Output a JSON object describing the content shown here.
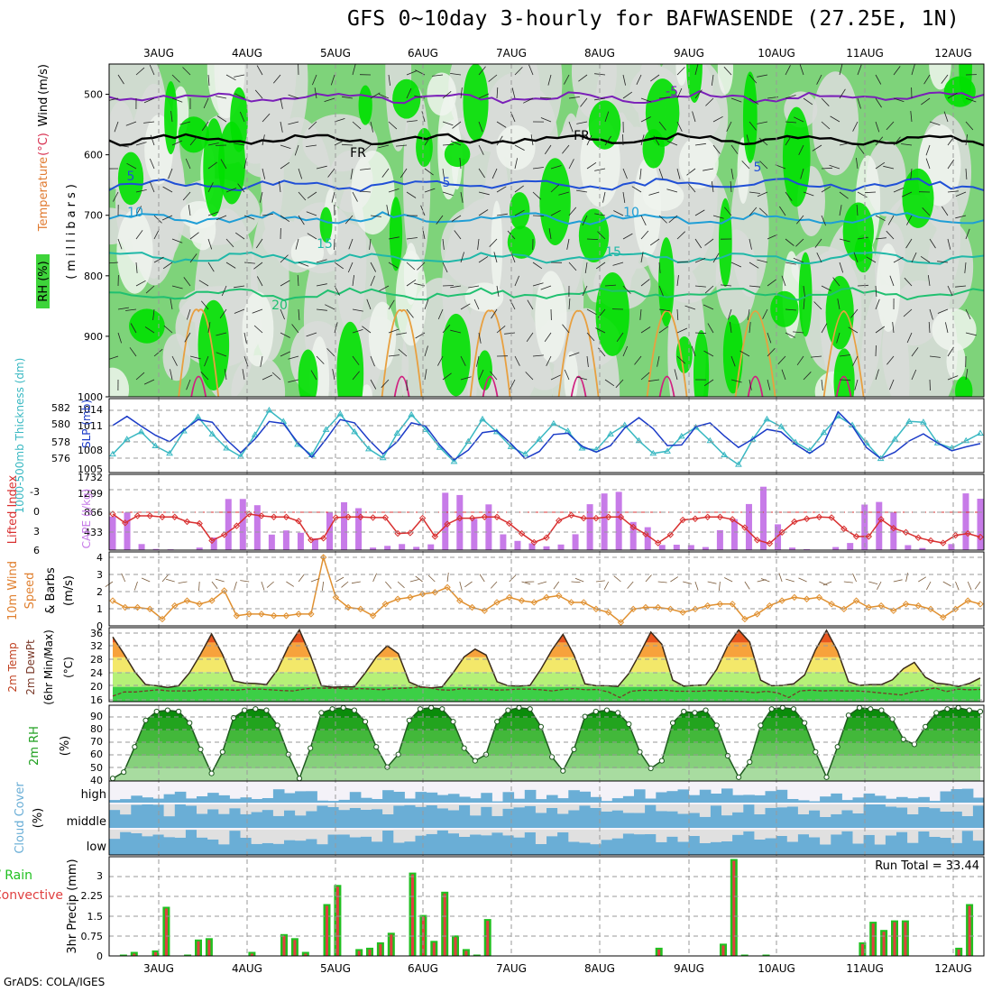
{
  "title": "GFS 0~10day 3-hourly for BAFWASENDE (27.25E, 1N)",
  "footer": "GrADS: COLA/IGES",
  "dates": [
    "3AUG",
    "4AUG",
    "5AUG",
    "6AUG",
    "7AUG",
    "8AUG",
    "9AUG",
    "10AUG",
    "11AUG",
    "12AUG"
  ],
  "colors": {
    "rh_light": "#d8dcd8",
    "rh_mid": "#7ed37a",
    "rh_green": "#3ed43a",
    "rh_bright": "#00e000",
    "temp_line": "#7a1fb8",
    "temp_blue": "#1f4fd6",
    "temp_cyan": "#1f9ed6",
    "temp_teal": "#20b8a8",
    "temp_green": "#20c070",
    "slp": "#39b8c2",
    "thick": "#1c3cc8",
    "lifted": "#d83030",
    "cape": "#c77be8",
    "wind": "#e09030",
    "cloud": "#6aaed6",
    "precip_total": "#20c020",
    "precip_conv": "#e04040"
  },
  "chart_data": [
    {
      "type": "heatmap",
      "ylabel": "(millibars)",
      "side_labels": {
        "rh": "RH (%)",
        "temperature": "Temperature",
        "temp_unit": "(°C)",
        "wind": "Wind",
        "wind_unit": "(m/s)"
      },
      "yticks": [
        "500",
        "600",
        "700",
        "800",
        "900",
        "1000"
      ],
      "ylim": [
        1000,
        450
      ],
      "contour_labels": [
        "-5",
        "FR",
        "5",
        "10",
        "15",
        "20"
      ],
      "isotherms_mb": [
        {
          "label": "-5",
          "level": 505
        },
        {
          "label": "FR",
          "level": 575
        },
        {
          "label": "5",
          "level": 650
        },
        {
          "label": "10",
          "level": 705
        },
        {
          "label": "15",
          "level": 770
        },
        {
          "label": "20",
          "level": 830
        }
      ]
    },
    {
      "type": "line",
      "left_label": "1000-500mb Thickness (dm)",
      "right_label": "SLP (mb)",
      "left_ticks": [
        "582",
        "580",
        "578",
        "576"
      ],
      "right_ticks": [
        "1014",
        "1011",
        "1008",
        "1005"
      ],
      "series": [
        {
          "name": "Thickness",
          "values": [
            576.5,
            578.5,
            579.5,
            577.6,
            576.6,
            579.6,
            581.5,
            579.2,
            577.3,
            576.2,
            579.1,
            582.4,
            580.9,
            577.8,
            576.4,
            579.8,
            581.9,
            579.5,
            577.2,
            576.0,
            579.3,
            581.8,
            579.8,
            577.4,
            575.5,
            578.2,
            581.2,
            579.5,
            577.5,
            576.5,
            578.5,
            580.6,
            579.6,
            577.3,
            577.1,
            579.2,
            580.4,
            578.3,
            576.6,
            576.9,
            578.9,
            580.1,
            578.3,
            576.4,
            575.1,
            578.5,
            581.2,
            580.2,
            578.1,
            577.0,
            579.4,
            581.6,
            580.4,
            578.0,
            575.9,
            578.5,
            580.9,
            580.8,
            578.0,
            577.3,
            578.3,
            579.3
          ]
        },
        {
          "name": "SLP",
          "values": [
            1011.7,
            1013.1,
            1011.6,
            1010.2,
            1009.2,
            1011.0,
            1012.6,
            1012.2,
            1009.5,
            1007.5,
            1009.6,
            1012.3,
            1012.0,
            1009.1,
            1006.8,
            1009.6,
            1012.6,
            1012.1,
            1009.5,
            1007.3,
            1009.2,
            1012.1,
            1011.6,
            1008.7,
            1006.4,
            1007.9,
            1010.6,
            1010.9,
            1008.9,
            1006.6,
            1007.7,
            1010.3,
            1010.5,
            1008.5,
            1007.6,
            1008.6,
            1011.3,
            1012.9,
            1011.2,
            1008.6,
            1008.7,
            1011.5,
            1012.1,
            1010.1,
            1008.3,
            1009.6,
            1011.1,
            1010.7,
            1008.8,
            1007.4,
            1008.9,
            1013.8,
            1011.6,
            1008.3,
            1006.6,
            1007.6,
            1009.3,
            1010.4,
            1009.0,
            1007.8,
            1008.4,
            1008.9
          ]
        }
      ]
    },
    {
      "type": "bar",
      "left_label": "Lifted Index",
      "right_label": "CAPE (J/kg)",
      "left_ticks": [
        "-3",
        "0",
        "3",
        "6"
      ],
      "right_ticks": [
        "1732",
        "1299",
        "866",
        "433"
      ],
      "series": [
        {
          "name": "CAPE",
          "values": [
            805,
            903,
            145,
            29,
            19,
            0,
            60,
            304,
            1228,
            1228,
            1079,
            372,
            473,
            416,
            284,
            901,
            1149,
            1007,
            60,
            101,
            144,
            77,
            139,
            1378,
            1323,
            751,
            1097,
            378,
            221,
            162,
            90,
            134,
            380,
            1103,
            1360,
            1399,
            676,
            550,
            124,
            130,
            121,
            73,
            478,
            742,
            1106,
            1522,
            620,
            61,
            23,
            7,
            74,
            170,
            1093,
            1156,
            905,
            120,
            49,
            0,
            145,
            1362,
            1233
          ]
        },
        {
          "name": "Lifted Index",
          "values": [
            0.5,
            -1.0,
            0.2,
            0.2,
            0.0,
            0.0,
            -0.8,
            -1.1,
            -4.0,
            -3.0,
            -1.5,
            0.5,
            0.2,
            0.0,
            0.0,
            -0.7,
            -3.9,
            -3.6,
            -0.1,
            0.0,
            0.0,
            -0.1,
            -0.1,
            -2.8,
            -2.7,
            -0.2,
            -3.3,
            -1.2,
            -0.2,
            -0.2,
            0.0,
            0.0,
            -1.1,
            -2.8,
            -4.3,
            -3.5,
            -0.6,
            0.3,
            -0.2,
            -0.2,
            0.0,
            0.0,
            -1.7,
            -2.9,
            -4.4,
            -3.0,
            -0.5,
            -0.3,
            0.0,
            0.0,
            -0.4,
            -1.8,
            -3.9,
            -4.5,
            -2.6,
            -0.8,
            -0.3,
            0.0,
            -0.1,
            -2.0,
            -3.3,
            -3.3,
            -0.4,
            -1.9,
            -2.6,
            -3.5,
            -4.0,
            -4.4,
            -3.1,
            -2.8,
            -3.4
          ]
        }
      ]
    },
    {
      "type": "line",
      "ylabel": "10m Wind Speed & Barbs (m/s)",
      "ylabel_parts": {
        "a": "10m Wind",
        "b": "Speed",
        "c": "& Barbs",
        "d": "(m/s)"
      },
      "yticks": [
        "4",
        "3",
        "2",
        "1",
        "0"
      ],
      "ylim": [
        0,
        4
      ],
      "series": [
        {
          "name": "Speed",
          "values": [
            1.4,
            1.0,
            1.0,
            0.9,
            0.3,
            1.1,
            1.4,
            1.2,
            1.4,
            2.0,
            0.5,
            0.6,
            0.6,
            0.5,
            0.5,
            0.6,
            0.6,
            4.0,
            1.6,
            1.0,
            0.9,
            0.5,
            1.2,
            1.5,
            1.6,
            1.8,
            1.9,
            2.2,
            1.4,
            1.0,
            0.8,
            1.3,
            1.6,
            1.4,
            1.3,
            1.6,
            1.7,
            1.3,
            1.3,
            0.9,
            0.7,
            0.1,
            0.9,
            1.0,
            1.0,
            0.9,
            0.7,
            0.9,
            1.1,
            1.2,
            1.2,
            0.3,
            0.6,
            1.1,
            1.4,
            1.6,
            1.5,
            1.6,
            1.2,
            0.9,
            1.4,
            1.0,
            1.1,
            0.8,
            1.2,
            1.1,
            0.9,
            0.4,
            0.9,
            1.4,
            1.2
          ]
        }
      ]
    },
    {
      "type": "area",
      "ylabel": "2m Temp 2m DewPt (6hr Min/Max) (°C)",
      "ylabel_parts": {
        "a": "2m Temp",
        "b": "2m DewPt",
        "c": "(6hr Min/Max)",
        "d": "(°C)"
      },
      "yticks": [
        "36",
        "32",
        "28",
        "24",
        "20",
        "16"
      ],
      "ylim": [
        16,
        36
      ],
      "series": [
        {
          "name": "2m Temp",
          "values": [
            33.5,
            29.0,
            24.1,
            20.6,
            20.3,
            19.8,
            20.3,
            23.8,
            28.8,
            34.3,
            28.7,
            21.6,
            21.0,
            20.9,
            20.6,
            24.6,
            30.9,
            35.4,
            28.5,
            20.3,
            19.9,
            20.0,
            20.0,
            23.8,
            28.1,
            31.1,
            29.0,
            21.3,
            20.0,
            19.7,
            20.0,
            23.8,
            28.1,
            30.2,
            28.6,
            21.4,
            20.3,
            20.2,
            20.4,
            24.8,
            30.0,
            34.2,
            28.6,
            20.8,
            20.3,
            20.3,
            20.1,
            23.6,
            29.0,
            34.8,
            31.5,
            21.8,
            20.2,
            20.4,
            20.5,
            24.7,
            31.1,
            35.4,
            32.1,
            21.8,
            20.3,
            20.4,
            20.8,
            23.2,
            30.0,
            35.3,
            29.7,
            21.4,
            20.4,
            20.6,
            20.6,
            21.9,
            24.9,
            26.6,
            22.6,
            21.0,
            20.7,
            20.1,
            20.9,
            22.4
          ]
        },
        {
          "name": "2m DewPt",
          "values": [
            17.5,
            18.6,
            18.6,
            18.9,
            19.2,
            18.9,
            18.9,
            18.9,
            19.3,
            19.2,
            19.2,
            19.1,
            19.4,
            19.4,
            19.2,
            19.0,
            18.9,
            19.4,
            19.7,
            19.6,
            19.6,
            19.4,
            19.5,
            19.4,
            19.2,
            19.6,
            19.6,
            19.9,
            19.8,
            19.2,
            19.1,
            19.5,
            19.4,
            19.4,
            19.1,
            19.2,
            19.4,
            19.4,
            19.2,
            18.9,
            19.3,
            19.5,
            19.2,
            19.3,
            18.6,
            17.1,
            18.8,
            19.1,
            19.0,
            19.1,
            18.8,
            18.8,
            18.8,
            19.0,
            18.9,
            18.8,
            18.7,
            18.4,
            18.8,
            18.4,
            17.1,
            18.9,
            19.1,
            18.9,
            19.0,
            18.9,
            18.9,
            18.7,
            18.4,
            18.1,
            17.8,
            18.6,
            19.1,
            19.7,
            18.7,
            19.4,
            19.2,
            19.3
          ]
        }
      ]
    },
    {
      "type": "area",
      "ylabel": "2m RH (%)",
      "yticks": [
        "90",
        "80",
        "70",
        "60",
        "50",
        "40"
      ],
      "ylim": [
        35,
        95
      ],
      "series": [
        {
          "name": "2m RH",
          "values": [
            37,
            42,
            62,
            83,
            90,
            91,
            90,
            81,
            60,
            41,
            58,
            85,
            91,
            92,
            91,
            79,
            56,
            37,
            61,
            89,
            92,
            93,
            91,
            82,
            62,
            46,
            56,
            83,
            92,
            93,
            92,
            82,
            61,
            51,
            56,
            82,
            91,
            93,
            92,
            78,
            54,
            43,
            60,
            86,
            90,
            91,
            89,
            80,
            58,
            45,
            51,
            81,
            90,
            89,
            91,
            79,
            55,
            38,
            50,
            79,
            92,
            93,
            92,
            81,
            58,
            38,
            62,
            87,
            93,
            92,
            91,
            84,
            68,
            64,
            78,
            89,
            92,
            93,
            91,
            90
          ]
        }
      ]
    },
    {
      "type": "heatmap",
      "ylabel": "Cloud Cover (%)",
      "yticks": [
        "high",
        "middle",
        "low"
      ],
      "levels": [
        "high",
        "middle",
        "low"
      ]
    },
    {
      "type": "bar",
      "ylabel": "3hr Precip (mm)",
      "side_label": "Total / Rain Convective",
      "side_label_parts": {
        "total": "Total / Rain",
        "conv": "Convective"
      },
      "annotation": "Run Total = 33.44",
      "yticks": [
        "3",
        "2.25",
        "1.5",
        "0.75",
        "0"
      ],
      "ylim": [
        0,
        3.5
      ],
      "series": [
        {
          "name": "Total",
          "values": [
            0,
            0.05,
            0.15,
            0,
            0.2,
            1.8,
            0,
            0.05,
            0.6,
            0.65,
            0,
            0,
            0,
            0.15,
            0,
            0,
            0.8,
            0.65,
            0.15,
            0,
            1.9,
            2.6,
            0,
            0.25,
            0.3,
            0.5,
            0.85,
            0,
            3.05,
            1.5,
            0.55,
            2.35,
            0.75,
            0.25,
            0.05,
            1.35,
            0,
            0,
            0,
            0,
            0,
            0,
            0,
            0,
            0,
            0,
            0,
            0,
            0,
            0,
            0,
            0.3,
            0,
            0,
            0,
            0,
            0,
            0.45,
            3.55,
            0.05,
            0,
            0.05,
            0,
            0,
            0,
            0,
            0,
            0,
            0,
            0,
            0.5,
            1.25,
            0.95,
            1.3,
            1.3,
            0,
            0,
            0,
            0,
            0.3,
            1.9,
            0
          ]
        }
      ]
    }
  ]
}
